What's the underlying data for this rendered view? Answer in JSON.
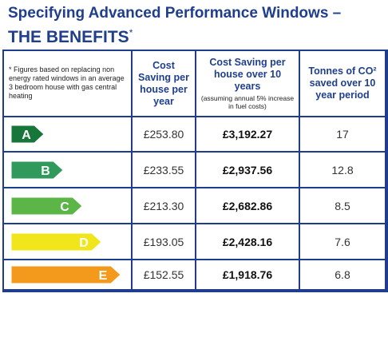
{
  "header": {
    "title": "Specifying Advanced Performance Windows –",
    "subtitle": "THE BENEFITS",
    "asterisk": "*"
  },
  "table": {
    "note": "* Figures based on replacing non energy rated windows in an average 3 bedroom house with gas central heating",
    "columns": [
      "Cost Saving per house per year",
      "Cost Saving per house over 10 years",
      "Tonnes of CO² saved over 10 year period"
    ],
    "column_note": "(assuming annual 5% increase in fuel costs)",
    "rows": [
      [
        "A",
        "£253.80",
        "£3,192.27",
        "17"
      ],
      [
        "B",
        "£233.55",
        "£2,937.56",
        "12.8"
      ],
      [
        "C",
        "£213.30",
        "£2,682.86",
        "8.5"
      ],
      [
        "D",
        "£193.05",
        "£2,428.16",
        "7.6"
      ],
      [
        "E",
        "£152.55",
        "£1,918.76",
        "6.8"
      ]
    ]
  }
}
